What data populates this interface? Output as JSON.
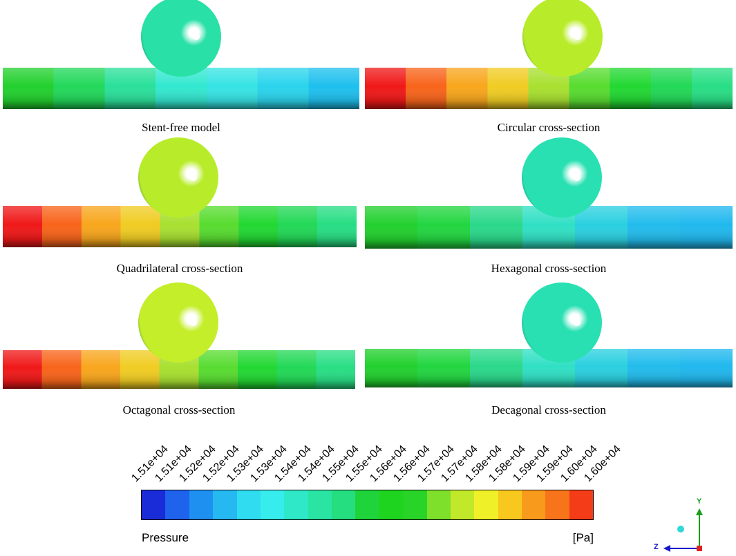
{
  "panels": [
    {
      "caption": "Stent-free model",
      "sphere_color": "#29e0a6",
      "gradient": [
        "#22d02e",
        "#22d85a",
        "#2ae09a",
        "#32e8cf",
        "#36e4e4",
        "#2ad4ec",
        "#1ec0ee"
      ]
    },
    {
      "caption": "Circular cross-section",
      "sphere_color": "#b8ec2a",
      "gradient": [
        "#f01818",
        "#f8641a",
        "#f8a61c",
        "#f0cc22",
        "#a8e030",
        "#58dc30",
        "#22d832",
        "#22d856",
        "#28de84"
      ]
    },
    {
      "caption": "Quadrilateral cross-section",
      "sphere_color": "#b8ec2a",
      "gradient": [
        "#f01818",
        "#f8641a",
        "#f8a61c",
        "#f0cc22",
        "#a8e030",
        "#58dc30",
        "#22d832",
        "#22d856",
        "#28de84"
      ]
    },
    {
      "caption": "Hexagonal cross-section",
      "sphere_color": "#29e0b2",
      "gradient": [
        "#22d02e",
        "#22d640",
        "#2ad88a",
        "#30e0c4",
        "#2ad0e0",
        "#22bcec",
        "#20b8ee"
      ]
    },
    {
      "caption": "Octagonal cross-section",
      "sphere_color": "#c4ee2a",
      "gradient": [
        "#f01818",
        "#f8641a",
        "#f8a61c",
        "#f0cc22",
        "#a8e030",
        "#58dc30",
        "#22d832",
        "#22d856",
        "#28de84"
      ]
    },
    {
      "caption": "Decagonal cross-section",
      "sphere_color": "#29e0b2",
      "gradient": [
        "#22d02e",
        "#22d640",
        "#2ad88a",
        "#30e0c4",
        "#2ad0e0",
        "#22bcec",
        "#20b8ee"
      ]
    }
  ],
  "legend": {
    "title": "Pressure",
    "unit": "[Pa]",
    "tick_labels": [
      "1.51e+04",
      "1.51e+04",
      "1.52e+04",
      "1.52e+04",
      "1.53e+04",
      "1.53e+04",
      "1.54e+04",
      "1.54e+04",
      "1.55e+04",
      "1.55e+04",
      "1.56e+04",
      "1.56e+04",
      "1.57e+04",
      "1.57e+04",
      "1.58e+04",
      "1.58e+04",
      "1.59e+04",
      "1.59e+04",
      "1.60e+04",
      "1.60e+04"
    ],
    "colors": [
      "#1a2bd8",
      "#1f62ec",
      "#1e90f0",
      "#26b8f0",
      "#30dcf0",
      "#36ecec",
      "#2ee8c8",
      "#2ae4a4",
      "#24de80",
      "#1ed43a",
      "#1ed41e",
      "#28d428",
      "#7ee02a",
      "#c2e82a",
      "#f0f028",
      "#f8c81e",
      "#f89a1c",
      "#f8741a",
      "#f43c18"
    ]
  },
  "axes": {
    "y_label": "Y",
    "z_label": "Z",
    "y_color": "#18a018",
    "z_color": "#1818c8"
  }
}
